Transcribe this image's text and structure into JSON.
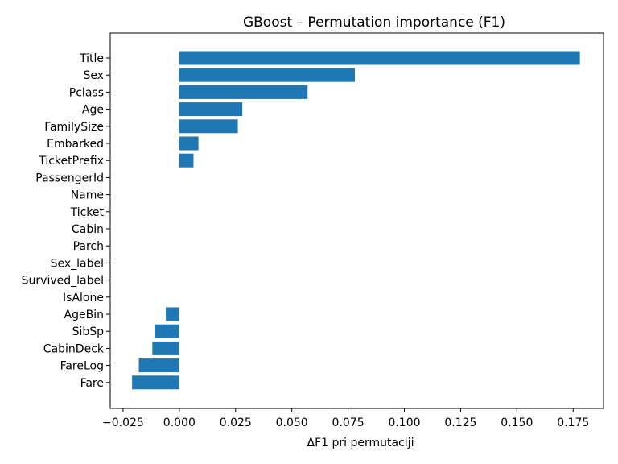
{
  "chart_data": {
    "type": "bar",
    "orientation": "horizontal",
    "title": "GBoost – Permutation importance (F1)",
    "xlabel": "ΔF1 pri permutaciji",
    "ylabel": "",
    "xlim": [
      -0.0307,
      0.1885
    ],
    "xticks": [
      -0.025,
      0.0,
      0.025,
      0.05,
      0.075,
      0.1,
      0.125,
      0.15,
      0.175
    ],
    "xtick_labels": [
      "−0.025",
      "0.000",
      "0.025",
      "0.050",
      "0.075",
      "0.100",
      "0.125",
      "0.150",
      "0.175"
    ],
    "categories": [
      "Title",
      "Sex",
      "Pclass",
      "Age",
      "FamilySize",
      "Embarked",
      "TicketPrefix",
      "PassengerId",
      "Name",
      "Ticket",
      "Cabin",
      "Parch",
      "Sex_label",
      "Survived_label",
      "IsAlone",
      "AgeBin",
      "SibSp",
      "CabinDeck",
      "FareLog",
      "Fare"
    ],
    "values": [
      0.178,
      0.078,
      0.057,
      0.028,
      0.026,
      0.0085,
      0.0063,
      0,
      0,
      0,
      0,
      0,
      0,
      0,
      0,
      -0.006,
      -0.011,
      -0.012,
      -0.018,
      -0.021
    ],
    "bar_color": "#1f77b4",
    "grid": false,
    "legend": "none"
  }
}
